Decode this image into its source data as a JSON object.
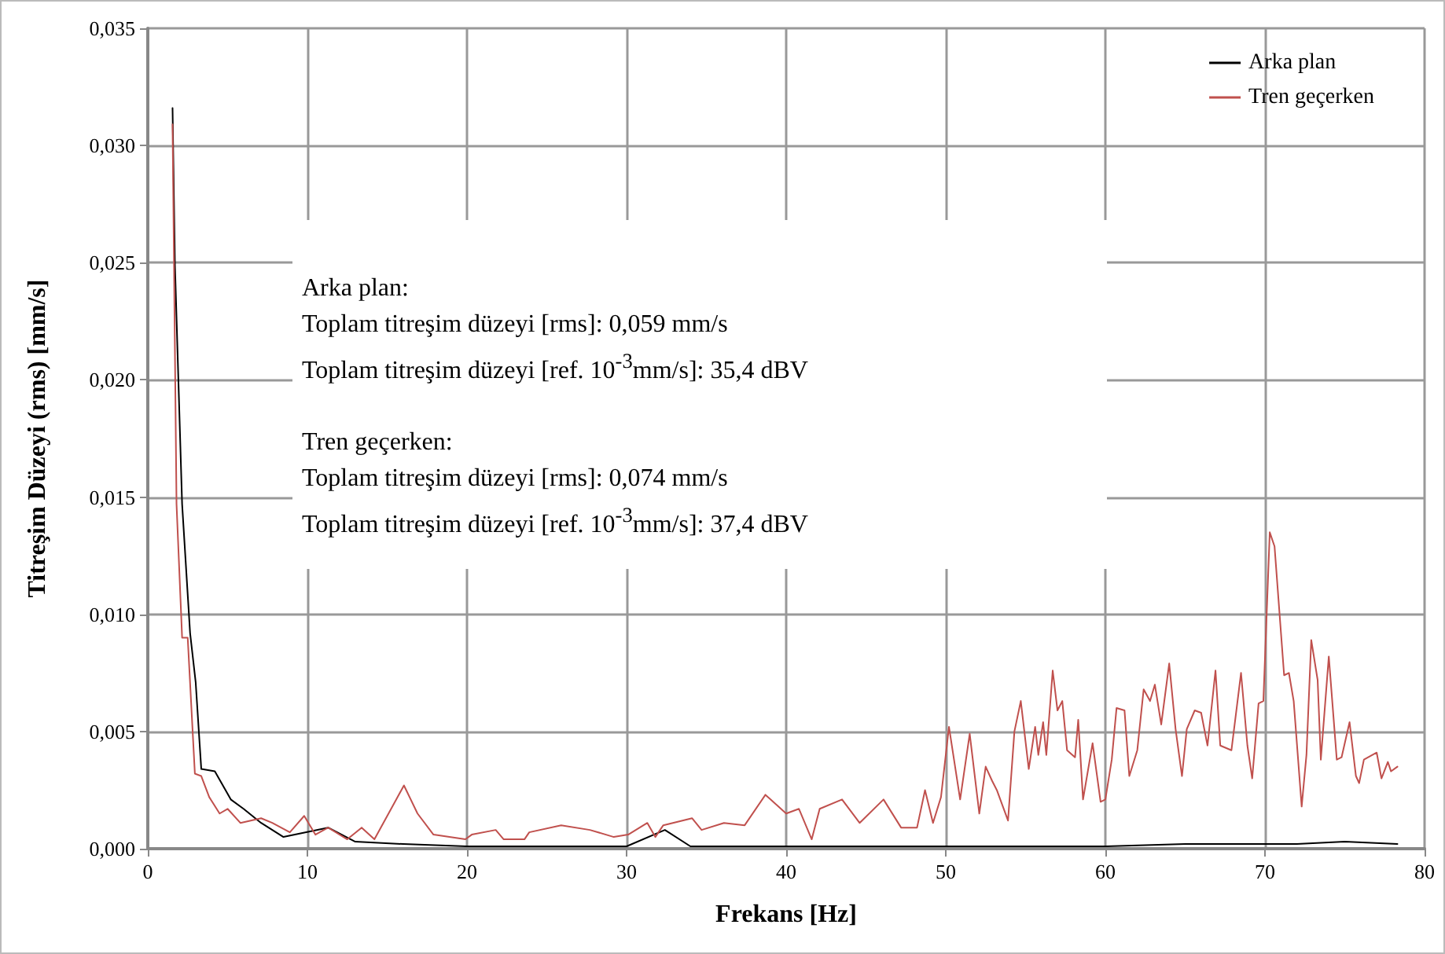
{
  "chart_data": {
    "type": "line",
    "xlabel": "Frekans [Hz]",
    "ylabel": "Titreşim Düzeyi (rms) [mm/s]",
    "xlim": [
      0,
      80
    ],
    "xticks": [
      0,
      10,
      20,
      30,
      40,
      50,
      60,
      70,
      80
    ],
    "ylim": [
      0,
      0.035
    ],
    "yticks": [
      {
        "value": 0,
        "label": "0,000"
      },
      {
        "value": 0.005,
        "label": "0,005"
      },
      {
        "value": 0.01,
        "label": "0,010"
      },
      {
        "value": 0.015,
        "label": "0,015"
      },
      {
        "value": 0.02,
        "label": "0,020"
      },
      {
        "value": 0.025,
        "label": "0,025"
      },
      {
        "value": 0.03,
        "label": "0,030"
      },
      {
        "value": 0.035,
        "label": "0,035"
      }
    ],
    "grid": true,
    "legend": "top right",
    "marker": "none",
    "line_style": "solid",
    "annotations": [
      "Arka plan:\nToplam titreşim düzeyi [rms]:  0,059 mm/s\nToplam titreşim düzeyi [ref. 10$^{-3}$mm/s]: 35,4 dBV",
      "Tren geçerken:\nToplam titreşim düzeyi [rms]:  0,074 mm/s\nToplam titreşim düzeyi [ref. 10$^{-3}$mm/s]: 37,4 dBV"
    ],
    "series": [
      {
        "name": "Arka plan",
        "color": "#000000",
        "x": [
          1.55,
          1.7,
          2.15,
          2.65,
          3.0,
          3.35,
          4.2,
          5.2,
          6.0,
          7.1,
          8.5,
          11.3,
          13,
          16,
          20,
          25,
          30,
          32.4,
          34,
          40,
          50,
          60,
          65,
          70,
          72,
          75,
          78.3
        ],
        "values": [
          0.0316,
          0.0249,
          0.0147,
          0.0092,
          0.0071,
          0.0034,
          0.0033,
          0.0021,
          0.0017,
          0.0011,
          0.0005,
          0.0009,
          0.0003,
          0.0002,
          0.0001,
          0.0001,
          0.0001,
          0.0008,
          0.0001,
          0.0001,
          0.0001,
          0.0001,
          0.0002,
          0.0002,
          0.0002,
          0.0003,
          0.0002
        ]
      },
      {
        "name": "Tren geçerken",
        "color": "#c0504d",
        "x": [
          1.55,
          1.8,
          2.15,
          2.5,
          2.95,
          3.35,
          3.85,
          4.5,
          5.0,
          5.8,
          7.1,
          7.8,
          8.9,
          9.8,
          10.5,
          11.3,
          12.5,
          13.4,
          14.2,
          16.05,
          16.9,
          17.9,
          19.9,
          20.3,
          21.8,
          22.3,
          23.6,
          23.9,
          25.9,
          27.7,
          29.2,
          30.1,
          31.3,
          31.8,
          32.3,
          34.1,
          34.7,
          36.1,
          37.4,
          38.7,
          40.0,
          40.8,
          41.6,
          42.1,
          43.5,
          44.6,
          46.1,
          47.2,
          48.2,
          48.7,
          49.2,
          49.7,
          50.2,
          50.9,
          51.5,
          52.1,
          52.5,
          52.9,
          53.2,
          53.9,
          54.3,
          54.7,
          55.2,
          55.6,
          55.8,
          56.1,
          56.3,
          56.7,
          57.0,
          57.3,
          57.6,
          58.1,
          58.3,
          58.6,
          59.2,
          59.7,
          60.0,
          60.4,
          60.7,
          61.2,
          61.5,
          62.0,
          62.4,
          62.8,
          63.1,
          63.5,
          64.0,
          64.4,
          64.8,
          65.1,
          65.6,
          66.0,
          66.4,
          66.9,
          67.2,
          67.9,
          68.5,
          68.9,
          69.2,
          69.6,
          69.9,
          70.3,
          70.6,
          71.2,
          71.5,
          71.8,
          72.3,
          72.6,
          72.9,
          73.3,
          73.5,
          74.0,
          74.5,
          74.8,
          75.3,
          75.7,
          75.9,
          76.2,
          77.0,
          77.3,
          77.7,
          77.9,
          78.3
        ],
        "values": [
          0.0309,
          0.0147,
          0.009,
          0.009,
          0.0032,
          0.0031,
          0.0022,
          0.0015,
          0.0017,
          0.0011,
          0.0013,
          0.0011,
          0.0007,
          0.0014,
          0.0006,
          0.0009,
          0.0004,
          0.0009,
          0.0004,
          0.0027,
          0.0015,
          0.0006,
          0.0004,
          0.0006,
          0.0008,
          0.0004,
          0.0004,
          0.0007,
          0.001,
          0.0008,
          0.0005,
          0.0006,
          0.0011,
          0.0005,
          0.001,
          0.0013,
          0.0008,
          0.0011,
          0.001,
          0.0023,
          0.0015,
          0.0017,
          0.0004,
          0.0017,
          0.0021,
          0.0011,
          0.0021,
          0.0009,
          0.0009,
          0.0025,
          0.0011,
          0.0022,
          0.0052,
          0.0021,
          0.0049,
          0.0015,
          0.0035,
          0.0029,
          0.0025,
          0.0012,
          0.005,
          0.0063,
          0.0034,
          0.0052,
          0.004,
          0.0054,
          0.004,
          0.0076,
          0.0059,
          0.0063,
          0.0042,
          0.0039,
          0.0055,
          0.0021,
          0.0045,
          0.002,
          0.0021,
          0.0038,
          0.006,
          0.0059,
          0.0031,
          0.0042,
          0.0068,
          0.0063,
          0.007,
          0.0053,
          0.0079,
          0.0051,
          0.0031,
          0.0051,
          0.0059,
          0.0058,
          0.0044,
          0.0076,
          0.0044,
          0.0042,
          0.0075,
          0.0044,
          0.003,
          0.0062,
          0.0063,
          0.0135,
          0.0129,
          0.0074,
          0.0075,
          0.0063,
          0.0018,
          0.004,
          0.0089,
          0.0072,
          0.0038,
          0.0082,
          0.0038,
          0.0039,
          0.0054,
          0.0031,
          0.0028,
          0.0038,
          0.0041,
          0.003,
          0.0037,
          0.0033,
          0.0035
        ]
      }
    ]
  }
}
